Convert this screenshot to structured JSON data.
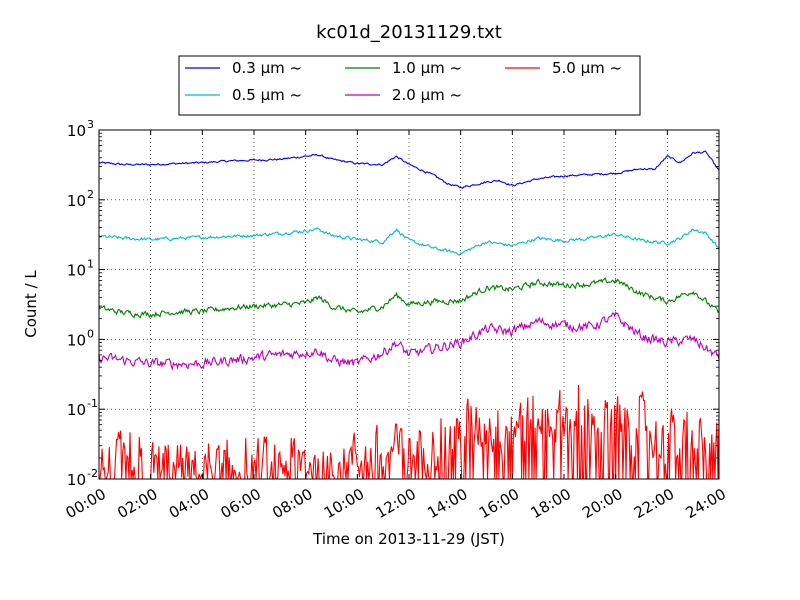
{
  "chart_data": {
    "type": "line",
    "title": "kc01d_20131129.txt",
    "xlabel": "Time on 2013-11-29 (JST)",
    "ylabel": "Count / L",
    "yscale": "log",
    "ylim": [
      0.01,
      1000
    ],
    "xlim": [
      "00:00",
      "24:00"
    ],
    "x_ticks": [
      "00:00",
      "02:00",
      "04:00",
      "06:00",
      "08:00",
      "10:00",
      "12:00",
      "14:00",
      "16:00",
      "18:00",
      "20:00",
      "22:00",
      "24:00"
    ],
    "y_ticks": [
      {
        "value": 0.01,
        "base": "10",
        "exp": "-2"
      },
      {
        "value": 0.1,
        "base": "10",
        "exp": "-1"
      },
      {
        "value": 1,
        "base": "10",
        "exp": "0"
      },
      {
        "value": 10,
        "base": "10",
        "exp": "1"
      },
      {
        "value": 100,
        "base": "10",
        "exp": "2"
      },
      {
        "value": 1000,
        "base": "10",
        "exp": "3"
      }
    ],
    "grid": true,
    "legend_position": "above plot, 3 columns",
    "series": [
      {
        "name": "0.3 µm ~",
        "color": "#0000ff",
        "x": [
          "00:00",
          "01:00",
          "02:00",
          "03:00",
          "04:00",
          "05:00",
          "06:00",
          "07:00",
          "08:00",
          "08:30",
          "09:00",
          "10:00",
          "11:00",
          "11:30",
          "12:00",
          "13:00",
          "13:30",
          "14:00",
          "15:00",
          "15:30",
          "16:00",
          "17:00",
          "18:00",
          "19:00",
          "20:00",
          "21:00",
          "21:30",
          "22:00",
          "22:30",
          "23:00",
          "23:30",
          "24:00"
        ],
        "values": [
          340,
          320,
          320,
          330,
          340,
          360,
          370,
          380,
          420,
          440,
          380,
          330,
          320,
          420,
          320,
          220,
          170,
          150,
          180,
          190,
          160,
          200,
          220,
          230,
          240,
          280,
          270,
          420,
          340,
          470,
          480,
          260
        ]
      },
      {
        "name": "0.5 µm ~",
        "color": "#00bfbf",
        "x": [
          "00:00",
          "01:00",
          "02:00",
          "03:00",
          "04:00",
          "05:00",
          "06:00",
          "07:00",
          "08:00",
          "08:30",
          "09:00",
          "10:00",
          "11:00",
          "11:30",
          "12:00",
          "13:00",
          "14:00",
          "15:00",
          "16:00",
          "17:00",
          "18:00",
          "19:00",
          "20:00",
          "21:00",
          "22:00",
          "22:30",
          "23:00",
          "23:30",
          "24:00"
        ],
        "values": [
          30,
          28,
          27,
          28,
          29,
          30,
          31,
          33,
          36,
          38,
          31,
          27,
          25,
          38,
          26,
          20,
          17,
          25,
          22,
          28,
          26,
          28,
          32,
          26,
          24,
          28,
          38,
          33,
          20
        ]
      },
      {
        "name": "1.0 µm ~",
        "color": "#008000",
        "x": [
          "00:00",
          "01:00",
          "02:00",
          "03:00",
          "04:00",
          "05:00",
          "06:00",
          "07:00",
          "08:00",
          "08:30",
          "09:00",
          "10:00",
          "11:00",
          "11:30",
          "12:00",
          "13:00",
          "14:00",
          "15:00",
          "16:00",
          "17:00",
          "18:00",
          "19:00",
          "20:00",
          "21:00",
          "22:00",
          "23:00",
          "24:00"
        ],
        "values": [
          2.8,
          2.4,
          2.3,
          2.5,
          2.5,
          2.8,
          3.0,
          3.1,
          3.3,
          4.0,
          3.0,
          2.4,
          3.0,
          4.3,
          3.2,
          3.5,
          3.6,
          5.5,
          5.2,
          6.5,
          6.0,
          6.2,
          7.0,
          4.5,
          3.5,
          5.0,
          2.4
        ]
      },
      {
        "name": "2.0 µm ~",
        "color": "#bf00bf",
        "x": [
          "00:00",
          "01:00",
          "02:00",
          "03:00",
          "04:00",
          "05:00",
          "06:00",
          "07:00",
          "08:00",
          "08:30",
          "09:00",
          "10:00",
          "11:00",
          "11:30",
          "12:00",
          "13:00",
          "14:00",
          "15:00",
          "16:00",
          "17:00",
          "18:00",
          "19:00",
          "20:00",
          "21:00",
          "22:00",
          "23:00",
          "24:00"
        ],
        "values": [
          0.55,
          0.5,
          0.45,
          0.45,
          0.45,
          0.5,
          0.55,
          0.6,
          0.65,
          0.7,
          0.5,
          0.45,
          0.65,
          0.9,
          0.6,
          0.75,
          0.9,
          1.4,
          1.3,
          1.8,
          1.6,
          1.5,
          2.1,
          1.1,
          0.9,
          1.0,
          0.55
        ]
      },
      {
        "name": "5.0 µm ~",
        "color": "#ff0000",
        "x": [
          "00:00",
          "02:00",
          "04:00",
          "06:00",
          "08:00",
          "10:00",
          "12:00",
          "14:00",
          "16:00",
          "18:00",
          "20:00",
          "22:00",
          "24:00"
        ],
        "values": [
          0.015,
          0.015,
          0.014,
          0.016,
          0.018,
          0.02,
          0.025,
          0.05,
          0.07,
          0.08,
          0.07,
          0.04,
          0.03
        ],
        "note_hidden": false
      }
    ]
  }
}
